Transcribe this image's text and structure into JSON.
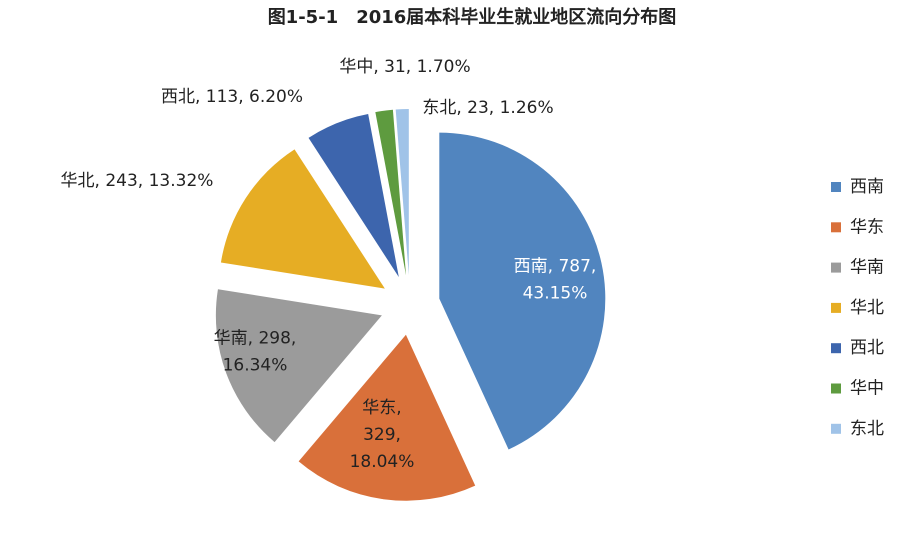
{
  "chart_data": {
    "type": "pie",
    "title": "图1-5-1　2016届本科毕业生就业地区流向分布图",
    "categories": [
      "西南",
      "华东",
      "华南",
      "华北",
      "西北",
      "华中",
      "东北"
    ],
    "values": [
      787,
      329,
      298,
      243,
      113,
      31,
      23
    ],
    "value_labels": [
      [
        "西南, 787,",
        "43.15%"
      ],
      [
        "华东,",
        "329,",
        "18.04%"
      ],
      [
        "华南, 298,",
        "16.34%"
      ],
      [
        "华北, 243, 13.32%"
      ],
      [
        "西北, 113, 6.20%"
      ],
      [
        "华中, 31, 1.70%"
      ],
      [
        "东北, 23, 1.26%"
      ]
    ],
    "colors": [
      "#5185bf",
      "#d9703a",
      "#9b9b9b",
      "#e6ad24",
      "#3d65ad",
      "#5e9b3f",
      "#a0c3e8"
    ],
    "legend": "right"
  }
}
